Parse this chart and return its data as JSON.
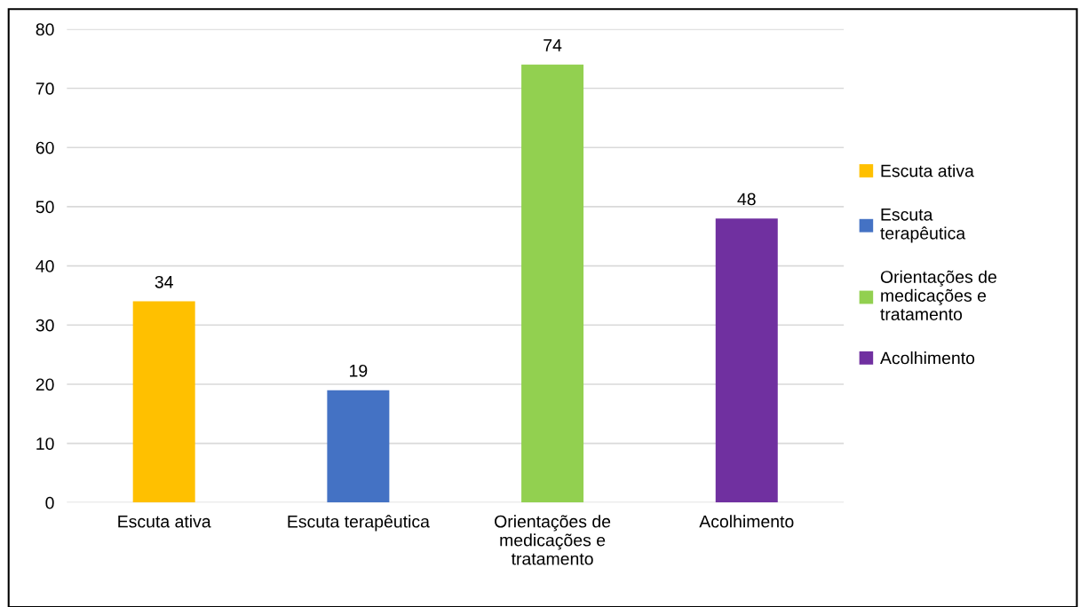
{
  "chart_data": {
    "type": "bar",
    "categories": [
      "Escuta ativa",
      "Escuta terapêutica",
      "Orientações de\nmedicações e\ntratamento",
      "Acolhimento"
    ],
    "series": [
      {
        "name": "Escuta ativa",
        "color": "#ffc000",
        "values": [
          34,
          null,
          null,
          null
        ]
      },
      {
        "name": "Escuta terapêutica",
        "color": "#4472c4",
        "values": [
          null,
          19,
          null,
          null
        ]
      },
      {
        "name": "Orientações de medicações e tratamento",
        "color": "#92d050",
        "values": [
          null,
          null,
          74,
          null
        ]
      },
      {
        "name": "Acolhimento",
        "color": "#7030a0",
        "values": [
          null,
          null,
          null,
          48
        ]
      }
    ],
    "ylim": [
      0,
      80
    ],
    "yticks": [
      0,
      10,
      20,
      30,
      40,
      50,
      60,
      70,
      80
    ],
    "grid": "y",
    "legend": "right",
    "data_labels": true
  }
}
